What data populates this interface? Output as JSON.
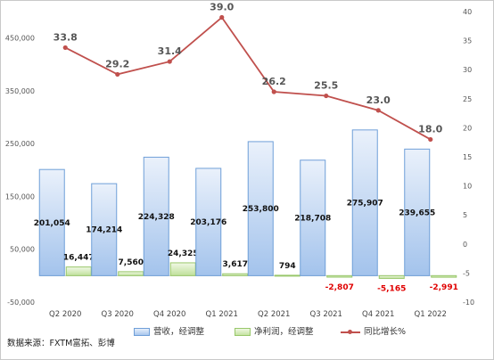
{
  "chart_data": {
    "type": "bar",
    "categories": [
      "Q2 2020",
      "Q3 2020",
      "Q4 2020",
      "Q1 2021",
      "Q2 2021",
      "Q3 2021",
      "Q4 2021",
      "Q1 2022"
    ],
    "series": [
      {
        "name": "营收，经调整",
        "type": "bar",
        "axis": "left",
        "values": [
          201054,
          174214,
          224328,
          203176,
          253800,
          218708,
          275907,
          239655
        ],
        "labels": [
          "201,054",
          "174,214",
          "224,328",
          "203,176",
          "253,800",
          "218,708",
          "275,907",
          "239,655"
        ],
        "color": "#a9c7ee"
      },
      {
        "name": "净利润，经调整",
        "type": "bar",
        "axis": "left",
        "values": [
          16447,
          7560,
          24325,
          3617,
          794,
          -2807,
          -5165,
          -2991
        ],
        "labels": [
          "16,447",
          "7,560",
          "24,325",
          "3,617",
          "794",
          "-2,807",
          "-5,165",
          "-2,991"
        ],
        "color": "#c6e3a2",
        "negative_label_color": "#e00000"
      },
      {
        "name": "同比增长%",
        "type": "line",
        "axis": "right",
        "values": [
          33.8,
          29.2,
          31.4,
          39.0,
          26.2,
          25.5,
          23.0,
          18.0
        ],
        "labels": [
          "33.8",
          "29.2",
          "31.4",
          "39.0",
          "26.2",
          "25.5",
          "23.0",
          "18.0"
        ],
        "color": "#c0504d"
      }
    ],
    "y_left": {
      "ylim": [
        -50000,
        500000
      ],
      "ticks": [
        -50000,
        50000,
        150000,
        250000,
        350000,
        450000
      ],
      "tick_labels": [
        "-50,000",
        "50,000",
        "150,000",
        "250,000",
        "350,000",
        "450,000"
      ]
    },
    "y_right": {
      "ylim": [
        -10,
        40
      ],
      "ticks": [
        -10,
        -5,
        0,
        5,
        10,
        15,
        20,
        25,
        30,
        35,
        40
      ],
      "tick_labels": [
        "-10",
        "-5",
        "0",
        "5",
        "10",
        "15",
        "20",
        "25",
        "30",
        "35",
        "40"
      ]
    },
    "legend_position": "bottom",
    "grid": false
  },
  "source_text": "数据来源：FXTM富拓、彭博"
}
